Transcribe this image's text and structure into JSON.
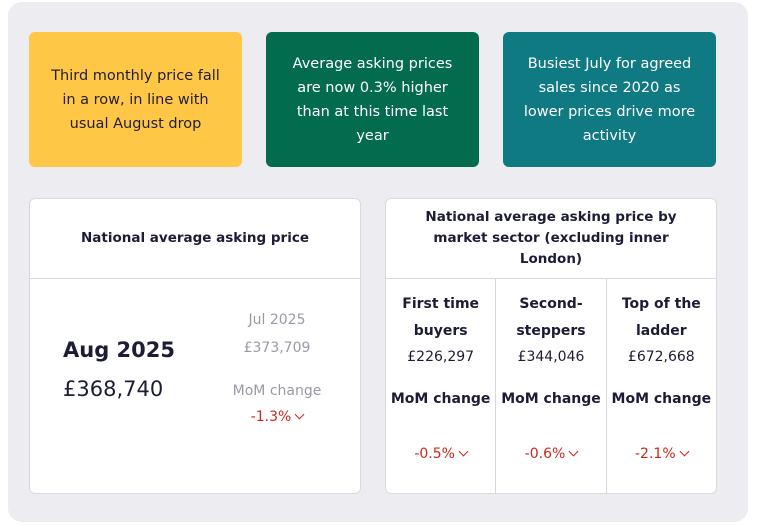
{
  "highlights": [
    {
      "text": "Third monthly price fall in a row, in line with usual August drop",
      "bg": "#ffc745"
    },
    {
      "text": "Average asking prices are now 0.3% higher than at this time last year",
      "bg": "#036b4e"
    },
    {
      "text": "Busiest July for agreed sales since 2020 as lower prices drive more activity",
      "bg": "#0f7a82"
    }
  ],
  "national": {
    "title": "National average asking price",
    "current_month": "Aug 2025",
    "current_price": "£368,740",
    "previous_month": "Jul 2025",
    "previous_price": "£373,709",
    "mom_label": "MoM change",
    "mom_value": "-1.3%",
    "mom_icon": "chevron-down-icon"
  },
  "sectors": {
    "title": "National average asking price by market sector (excluding inner London)",
    "items": [
      {
        "name": "First time buyers",
        "price": "£226,297",
        "mom_label": "MoM change",
        "mom_value": "-0.5%"
      },
      {
        "name": "Second-steppers",
        "price": "£344,046",
        "mom_label": "MoM change",
        "mom_value": "-0.6%"
      },
      {
        "name": "Top of the ladder",
        "price": "£672,668",
        "mom_label": "MoM change",
        "mom_value": "-2.1%"
      }
    ]
  },
  "colors": {
    "negative": "#c8271a",
    "text_dark": "#1c1c36",
    "muted": "#9a9aa6"
  }
}
